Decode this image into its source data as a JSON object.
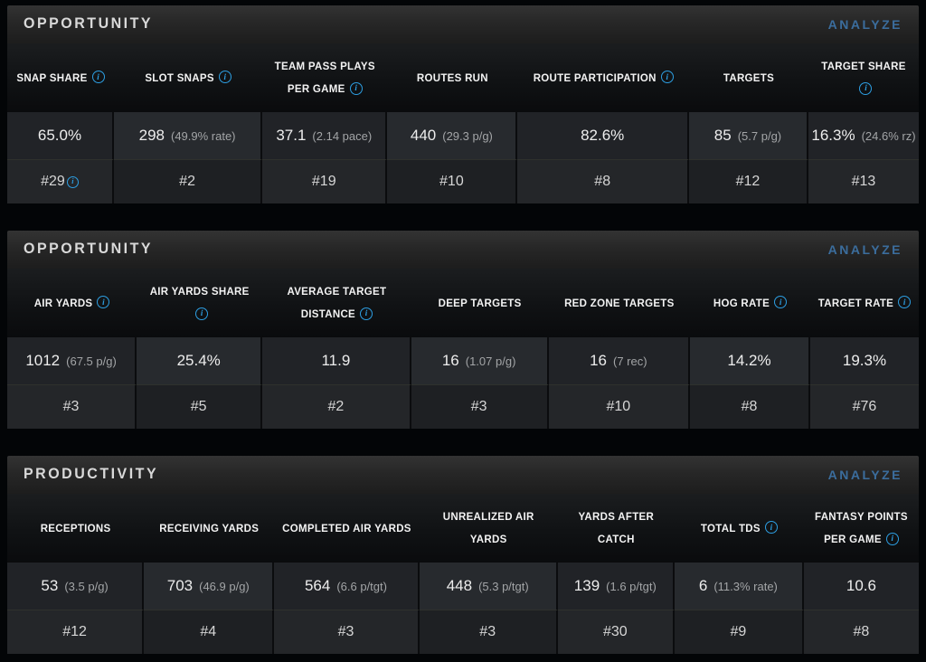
{
  "colors": {
    "info_blue": "#2d9fe3",
    "analyze_blue": "#3b6d9d",
    "page_bg": "#030507"
  },
  "icons": {
    "info_glyph": "i"
  },
  "sections": [
    {
      "title": "OPPORTUNITY",
      "analyze_label": "ANALYZE",
      "columns": [
        {
          "label": "SNAP SHARE",
          "value": "65.0%",
          "sub": "",
          "rank": "#29"
        },
        {
          "label": "SLOT SNAPS",
          "value": "298",
          "sub": "(49.9% rate)",
          "rank": "#2"
        },
        {
          "label": "TEAM PASS PLAYS PER GAME",
          "value": "37.1",
          "sub": "(2.14 pace)",
          "rank": "#19"
        },
        {
          "label": "ROUTES RUN",
          "value": "440",
          "sub": "(29.3 p/g)",
          "rank": "#10"
        },
        {
          "label": "ROUTE PARTICIPATION",
          "value": "82.6%",
          "sub": "",
          "rank": "#8"
        },
        {
          "label": "TARGETS",
          "value": "85",
          "sub": "(5.7 p/g)",
          "rank": "#12"
        },
        {
          "label": "TARGET SHARE",
          "value": "16.3%",
          "sub": "(24.6% rz)",
          "rank": "#13"
        }
      ]
    },
    {
      "title": "OPPORTUNITY",
      "analyze_label": "ANALYZE",
      "columns": [
        {
          "label": "AIR YARDS",
          "value": "1012",
          "sub": "(67.5 p/g)",
          "rank": "#3"
        },
        {
          "label": "AIR YARDS SHARE",
          "value": "25.4%",
          "sub": "",
          "rank": "#5"
        },
        {
          "label": "AVERAGE TARGET DISTANCE",
          "value": "11.9",
          "sub": "",
          "rank": "#2"
        },
        {
          "label": "DEEP TARGETS",
          "value": "16",
          "sub": "(1.07 p/g)",
          "rank": "#3"
        },
        {
          "label": "RED ZONE TARGETS",
          "value": "16",
          "sub": "(7 rec)",
          "rank": "#10"
        },
        {
          "label": "HOG RATE",
          "value": "14.2%",
          "sub": "",
          "rank": "#8"
        },
        {
          "label": "TARGET RATE",
          "value": "19.3%",
          "sub": "",
          "rank": "#76"
        }
      ]
    },
    {
      "title": "PRODUCTIVITY",
      "analyze_label": "ANALYZE",
      "columns": [
        {
          "label": "RECEPTIONS",
          "value": "53",
          "sub": "(3.5 p/g)",
          "rank": "#12"
        },
        {
          "label": "RECEIVING YARDS",
          "value": "703",
          "sub": "(46.9 p/g)",
          "rank": "#4"
        },
        {
          "label": "COMPLETED AIR YARDS",
          "value": "564",
          "sub": "(6.6 p/tgt)",
          "rank": "#3"
        },
        {
          "label": "UNREALIZED AIR YARDS",
          "value": "448",
          "sub": "(5.3 p/tgt)",
          "rank": "#3"
        },
        {
          "label": "YARDS AFTER CATCH",
          "value": "139",
          "sub": "(1.6 p/tgt)",
          "rank": "#30"
        },
        {
          "label": "TOTAL TDS",
          "value": "6",
          "sub": "(11.3% rate)",
          "rank": "#9"
        },
        {
          "label": "FANTASY POINTS PER GAME",
          "value": "10.6",
          "sub": "",
          "rank": "#8"
        }
      ]
    }
  ]
}
